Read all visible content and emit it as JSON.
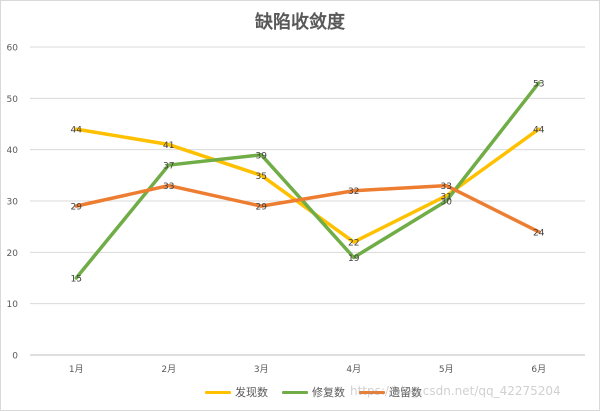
{
  "chart_data": {
    "type": "line",
    "title": "缺陷收敛度",
    "categories": [
      "1月",
      "2月",
      "3月",
      "4月",
      "5月",
      "6月"
    ],
    "ylim": [
      0,
      60
    ],
    "yticks": [
      0,
      10,
      20,
      30,
      40,
      50,
      60
    ],
    "grid": true,
    "legend_position": "bottom",
    "series": [
      {
        "name": "发现数",
        "color": "#ffc000",
        "values": [
          44,
          41,
          35,
          22,
          31,
          44
        ]
      },
      {
        "name": "修复数",
        "color": "#70ad47",
        "values": [
          15,
          37,
          39,
          19,
          30,
          53
        ]
      },
      {
        "name": "遗留数",
        "color": "#ed7d31",
        "values": [
          29,
          33,
          29,
          32,
          33,
          24
        ]
      }
    ]
  },
  "watermark": "https://blog.csdn.net/qq_42275204"
}
